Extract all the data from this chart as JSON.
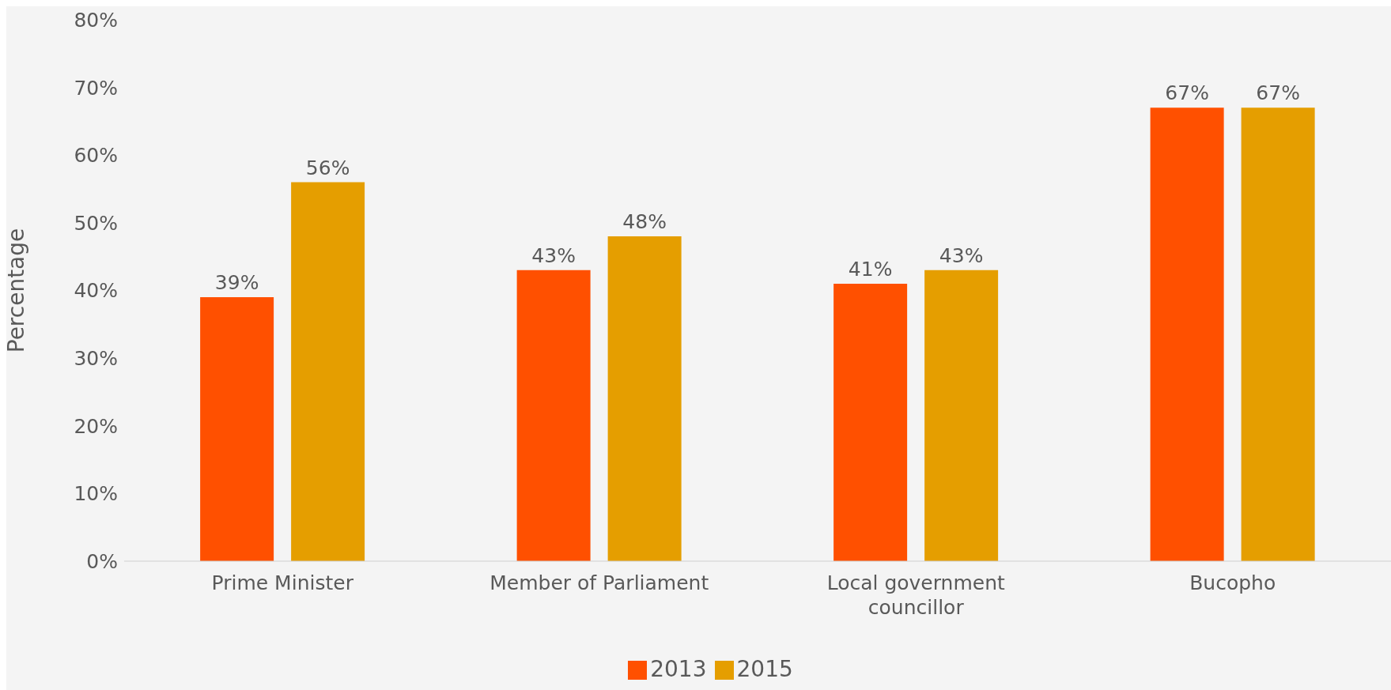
{
  "chart_data": {
    "type": "bar",
    "ylabel": "Percentage",
    "categories": [
      "Prime Minister",
      "Member of Parliament",
      "Local government councillor",
      "Bucopho"
    ],
    "series": [
      {
        "name": "2013",
        "color": "#ff5000",
        "values": [
          39,
          43,
          41,
          67
        ],
        "value_labels": [
          "39%",
          "43%",
          "41%",
          "67%"
        ]
      },
      {
        "name": "2015",
        "color": "#e59e00",
        "values": [
          56,
          48,
          43,
          67
        ],
        "value_labels": [
          "56%",
          "48%",
          "43%",
          "67%"
        ]
      }
    ],
    "ylim": [
      0,
      80
    ],
    "yticks": [
      {
        "value": 0,
        "label": "0%"
      },
      {
        "value": 10,
        "label": "10%"
      },
      {
        "value": 20,
        "label": "20%"
      },
      {
        "value": 30,
        "label": "30%"
      },
      {
        "value": 40,
        "label": "40%"
      },
      {
        "value": 50,
        "label": "50%"
      },
      {
        "value": 60,
        "label": "60%"
      },
      {
        "value": 70,
        "label": "70%"
      },
      {
        "value": 80,
        "label": "80%"
      }
    ],
    "grid": false,
    "legend": "bottom"
  }
}
